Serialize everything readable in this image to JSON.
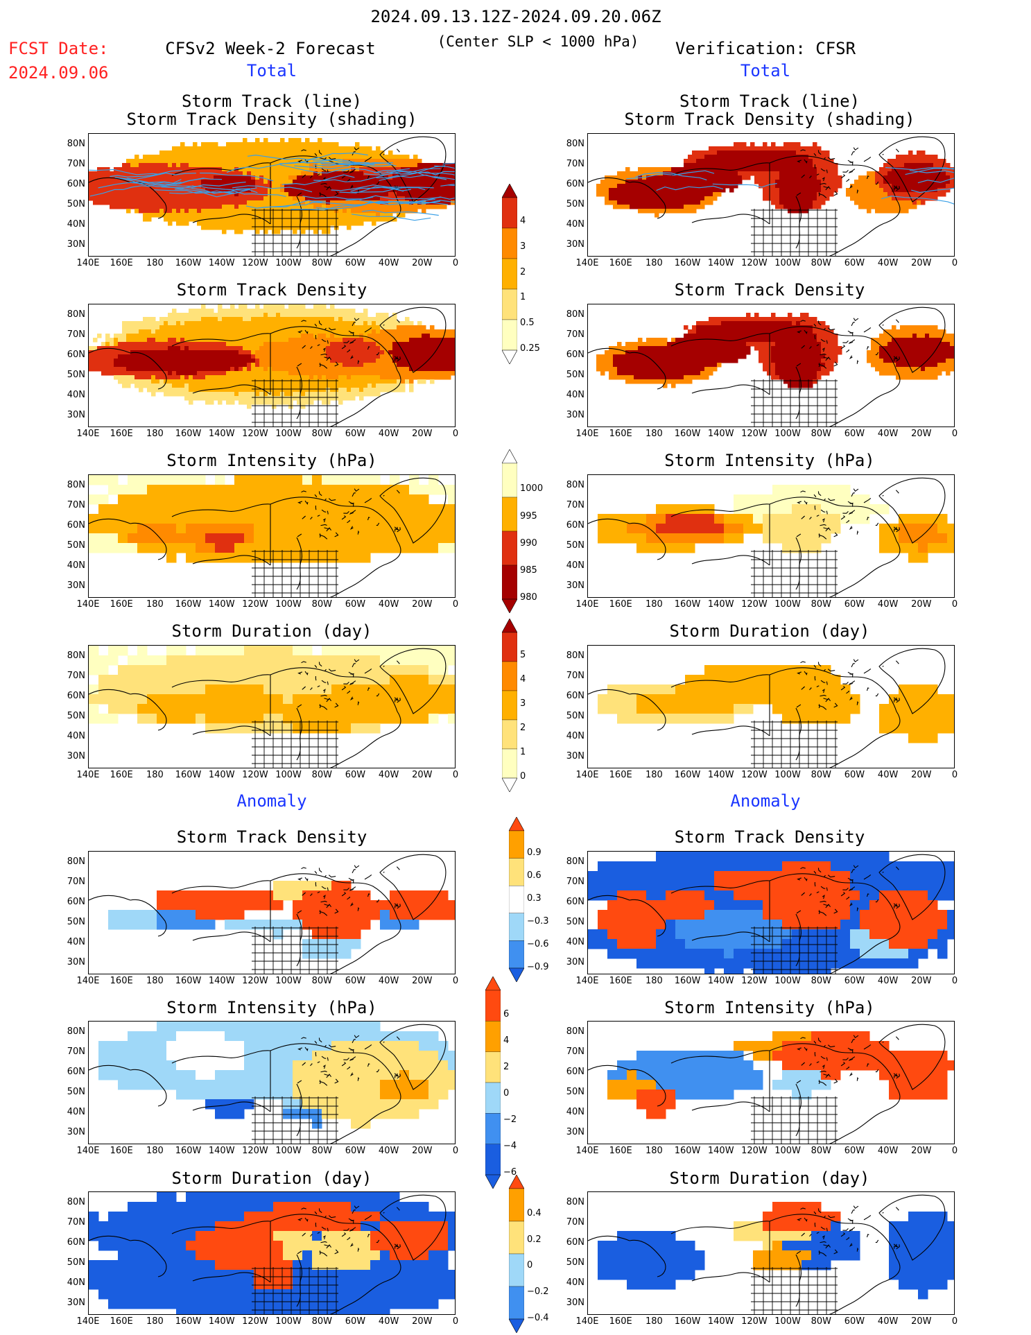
{
  "header": {
    "period": "2024.09.13.12Z-2024.09.20.06Z",
    "criterion": "(Center SLP < 1000 hPa)",
    "fcst_date_label": "FCST Date:",
    "fcst_date": "2024.09.06",
    "left_title": "CFSv2 Week-2 Forecast",
    "right_title": "Verification: CFSR",
    "total_label": "Total",
    "anomaly_label": "Anomaly"
  },
  "panel_titles": {
    "track_line": "Storm Track (line)",
    "track_shading": "Storm Track Density (shading)",
    "density": "Storm Track Density",
    "intensity": "Storm Intensity (hPa)",
    "duration": "Storm Duration (day)"
  },
  "axes": {
    "lat_labels": [
      "80N",
      "70N",
      "60N",
      "50N",
      "40N",
      "30N"
    ],
    "lon_labels": [
      "140E",
      "160E",
      "180",
      "160W",
      "140W",
      "120W",
      "100W",
      "80W",
      "60W",
      "40W",
      "20W",
      "0"
    ]
  },
  "colorbars": {
    "density": [
      "4",
      "3",
      "2",
      "1",
      "0.5",
      "0.25"
    ],
    "intensity": [
      "1000",
      "995",
      "990",
      "985",
      "980"
    ],
    "duration": [
      "5",
      "4",
      "3",
      "2",
      "1",
      "0"
    ],
    "anom_density": [
      "0.9",
      "0.6",
      "0.3",
      "−0.3",
      "−0.6",
      "−0.9"
    ],
    "anom_intensity": [
      "6",
      "4",
      "2",
      "0",
      "−2",
      "−4",
      "−6"
    ],
    "anom_duration": [
      "0.4",
      "0.2",
      "0",
      "−0.2",
      "−0.4"
    ]
  },
  "colors": {
    "total_scale": [
      "#ffffc0",
      "#ffe27a",
      "#ffb000",
      "#ff8a00",
      "#e03010",
      "#a50000"
    ],
    "anom_scale": [
      "#1a5ee0",
      "#4090f0",
      "#9fd8f8",
      "#ffffff",
      "#ffe27a",
      "#ffa000",
      "#ff4a10"
    ]
  }
}
